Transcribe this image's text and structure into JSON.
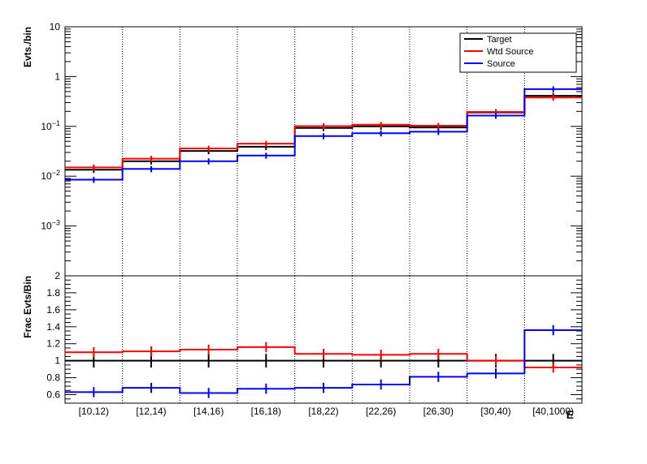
{
  "chart_data": [
    {
      "type": "line",
      "panel": "top",
      "title": "",
      "xlabel": "",
      "ylabel": "Evts./bin",
      "log_y": true,
      "ylim": [
        0.0001,
        10
      ],
      "categories": [
        "[10,12)",
        "[12,14)",
        "[14,16)",
        "[16,18)",
        "[18,22)",
        "[22,26)",
        "[26,30)",
        "[30,40)",
        "[40,1000)"
      ],
      "y_tick_labels": [
        "10",
        "1",
        "10^-1",
        "10^-2",
        "10^-3"
      ],
      "legend_position": "top-right",
      "series": [
        {
          "name": "Target",
          "color": "#000000",
          "values": [
            0.0135,
            0.02,
            0.032,
            0.039,
            0.093,
            0.1,
            0.095,
            0.19,
            0.41
          ]
        },
        {
          "name": "Wtd Source",
          "color": "#ff0000",
          "values": [
            0.015,
            0.0225,
            0.036,
            0.045,
            0.101,
            0.108,
            0.103,
            0.195,
            0.38
          ]
        },
        {
          "name": "Source",
          "color": "#0000ff",
          "values": [
            0.0085,
            0.014,
            0.02,
            0.026,
            0.064,
            0.073,
            0.078,
            0.165,
            0.56
          ]
        }
      ]
    },
    {
      "type": "line",
      "panel": "bottom",
      "title": "",
      "xlabel": "E",
      "ylabel": "Frac Evts/Bin",
      "ylim": [
        0.5,
        2
      ],
      "y_ticks": [
        0.6,
        0.8,
        1,
        1.2,
        1.4,
        1.6,
        1.8,
        2
      ],
      "y_tick_labels": [
        "0.6",
        "0.8",
        "1",
        "1.2",
        "1.4",
        "1.6",
        "1.8",
        "2"
      ],
      "categories": [
        "[10,12)",
        "[12,14)",
        "[14,16)",
        "[16,18)",
        "[18,22)",
        "[22,26)",
        "[26,30)",
        "[30,40)",
        "[40,1000)"
      ],
      "series": [
        {
          "name": "Target",
          "color": "#000000",
          "values": [
            1.0,
            1.0,
            1.0,
            1.0,
            1.0,
            1.0,
            1.0,
            1.0,
            1.0
          ]
        },
        {
          "name": "Wtd Source",
          "color": "#ff0000",
          "values": [
            1.1,
            1.11,
            1.13,
            1.16,
            1.08,
            1.07,
            1.08,
            1.0,
            0.92
          ]
        },
        {
          "name": "Source",
          "color": "#0000ff",
          "values": [
            0.63,
            0.68,
            0.62,
            0.67,
            0.68,
            0.72,
            0.81,
            0.85,
            1.36
          ]
        }
      ]
    }
  ]
}
